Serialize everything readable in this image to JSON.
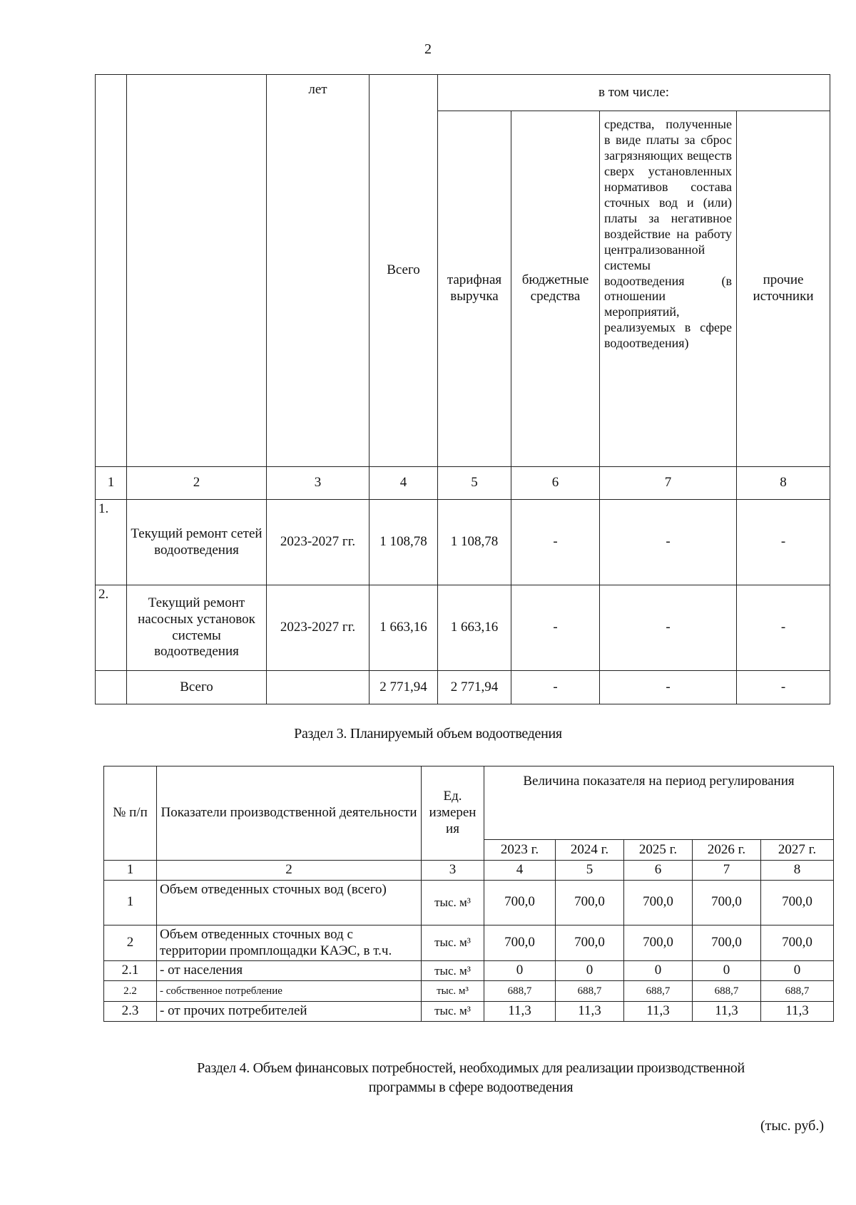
{
  "page_number": "2",
  "table1": {
    "header": {
      "col3": "лет",
      "total": "Всего",
      "including": "в том числе:",
      "tariff": "тарифная выручка",
      "budget": "бюджетные средства",
      "fees": "средства, полученные в виде платы за сброс загрязняющих веществ сверх установленных нормативов состава сточных вод и (или) платы за негативное воздействие на работу централизованной системы водоотведения (в отношении мероприятий, реализуемых в сфере водоотведения)",
      "other": "прочие источники"
    },
    "col_numbers": [
      "1",
      "2",
      "3",
      "4",
      "5",
      "6",
      "7",
      "8"
    ],
    "rows": [
      {
        "num": "1.",
        "name": "Текущий ремонт сетей водоотведения",
        "years": "2023-2027 гг.",
        "total": "1 108,78",
        "tariff": "1 108,78",
        "budget": "-",
        "fees": "-",
        "other": "-"
      },
      {
        "num": "2.",
        "name": "Текущий ремонт насосных установок системы водоотведения",
        "years": "2023-2027 гг.",
        "total": "1 663,16",
        "tariff": "1 663,16",
        "budget": "-",
        "fees": "-",
        "other": "-"
      }
    ],
    "total_row": {
      "name": "Всего",
      "total": "2 771,94",
      "tariff": "2 771,94",
      "budget": "-",
      "fees": "-",
      "other": "-"
    }
  },
  "section3_title": "Раздел 3.  Планируемый объем водоотведения",
  "table2": {
    "header": {
      "num": "№ п/п",
      "indicator": "Показатели производственной деятельности",
      "unit": "Ед. измерен ия",
      "period": "Величина показателя на период регулирования",
      "years": [
        "2023 г.",
        "2024 г.",
        "2025 г.",
        "2026 г.",
        "2027 г."
      ]
    },
    "col_numbers": [
      "1",
      "2",
      "3",
      "4",
      "5",
      "6",
      "7",
      "8"
    ],
    "rows": [
      {
        "num": "1",
        "name": "Объем отведенных сточных вод (всего)",
        "unit": "тыс. м³",
        "values": [
          "700,0",
          "700,0",
          "700,0",
          "700,0",
          "700,0"
        ]
      },
      {
        "num": "2",
        "name": "Объем отведенных сточных вод с территории промплощадки КАЭС, в т.ч.",
        "unit": "тыс. м³",
        "values": [
          "700,0",
          "700,0",
          "700,0",
          "700,0",
          "700,0"
        ]
      },
      {
        "num": "2.1",
        "name": "- от населения",
        "unit": "тыс. м³",
        "values": [
          "0",
          "0",
          "0",
          "0",
          "0"
        ]
      },
      {
        "num": "2.2",
        "name": "- собственное потребление",
        "unit": "тыс. м³",
        "values": [
          "688,7",
          "688,7",
          "688,7",
          "688,7",
          "688,7"
        ]
      },
      {
        "num": "2.3",
        "name": "- от прочих потребителей",
        "unit": "тыс. м³",
        "values": [
          "11,3",
          "11,3",
          "11,3",
          "11,3",
          "11,3"
        ]
      }
    ]
  },
  "section4_title_line1": "Раздел 4. Объем финансовых потребностей, необходимых для реализации производственной",
  "section4_title_line2": "программы в сфере водоотведения",
  "units_note": "(тыс. руб.)"
}
